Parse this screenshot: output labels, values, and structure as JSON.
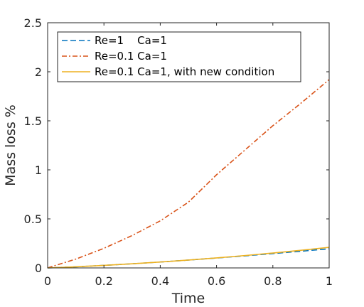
{
  "chart_data": {
    "type": "line",
    "title": "",
    "xlabel": "Time",
    "ylabel": "Mass loss %",
    "xlim": [
      0,
      1
    ],
    "ylim": [
      0,
      2.5
    ],
    "xticks": [
      0,
      0.2,
      0.4,
      0.6,
      0.8,
      1
    ],
    "xtick_labels": [
      "0",
      "0.2",
      "0.4",
      "0.6",
      "0.8",
      "1"
    ],
    "yticks": [
      0,
      0.5,
      1,
      1.5,
      2,
      2.5
    ],
    "ytick_labels": [
      "0",
      "0.5",
      "1",
      "1.5",
      "2",
      "2.5"
    ],
    "grid": false,
    "legend_position": "top-left",
    "series": [
      {
        "name": "Re=1    Ca=1",
        "color": "#0072BD",
        "dash": "dashed",
        "x": [
          0,
          0.1,
          0.2,
          0.3,
          0.4,
          0.5,
          0.6,
          0.7,
          0.8,
          0.9,
          1.0
        ],
        "y": [
          0,
          0.011,
          0.026,
          0.042,
          0.06,
          0.08,
          0.101,
          0.123,
          0.146,
          0.17,
          0.195
        ]
      },
      {
        "name": "Re=0.1 Ca=1",
        "color": "#D95319",
        "dash": "dashdot",
        "x": [
          0,
          0.1,
          0.2,
          0.3,
          0.4,
          0.5,
          0.6,
          0.7,
          0.8,
          0.9,
          1.0
        ],
        "y": [
          0,
          0.09,
          0.2,
          0.33,
          0.48,
          0.67,
          0.95,
          1.2,
          1.45,
          1.68,
          1.92
        ]
      },
      {
        "name": "Re=0.1 Ca=1, with new condition",
        "color": "#EDB120",
        "dash": "solid",
        "x": [
          0,
          0.1,
          0.2,
          0.3,
          0.4,
          0.5,
          0.6,
          0.7,
          0.8,
          0.9,
          1.0
        ],
        "y": [
          0,
          0.011,
          0.026,
          0.042,
          0.06,
          0.08,
          0.102,
          0.126,
          0.152,
          0.18,
          0.21
        ]
      }
    ]
  }
}
